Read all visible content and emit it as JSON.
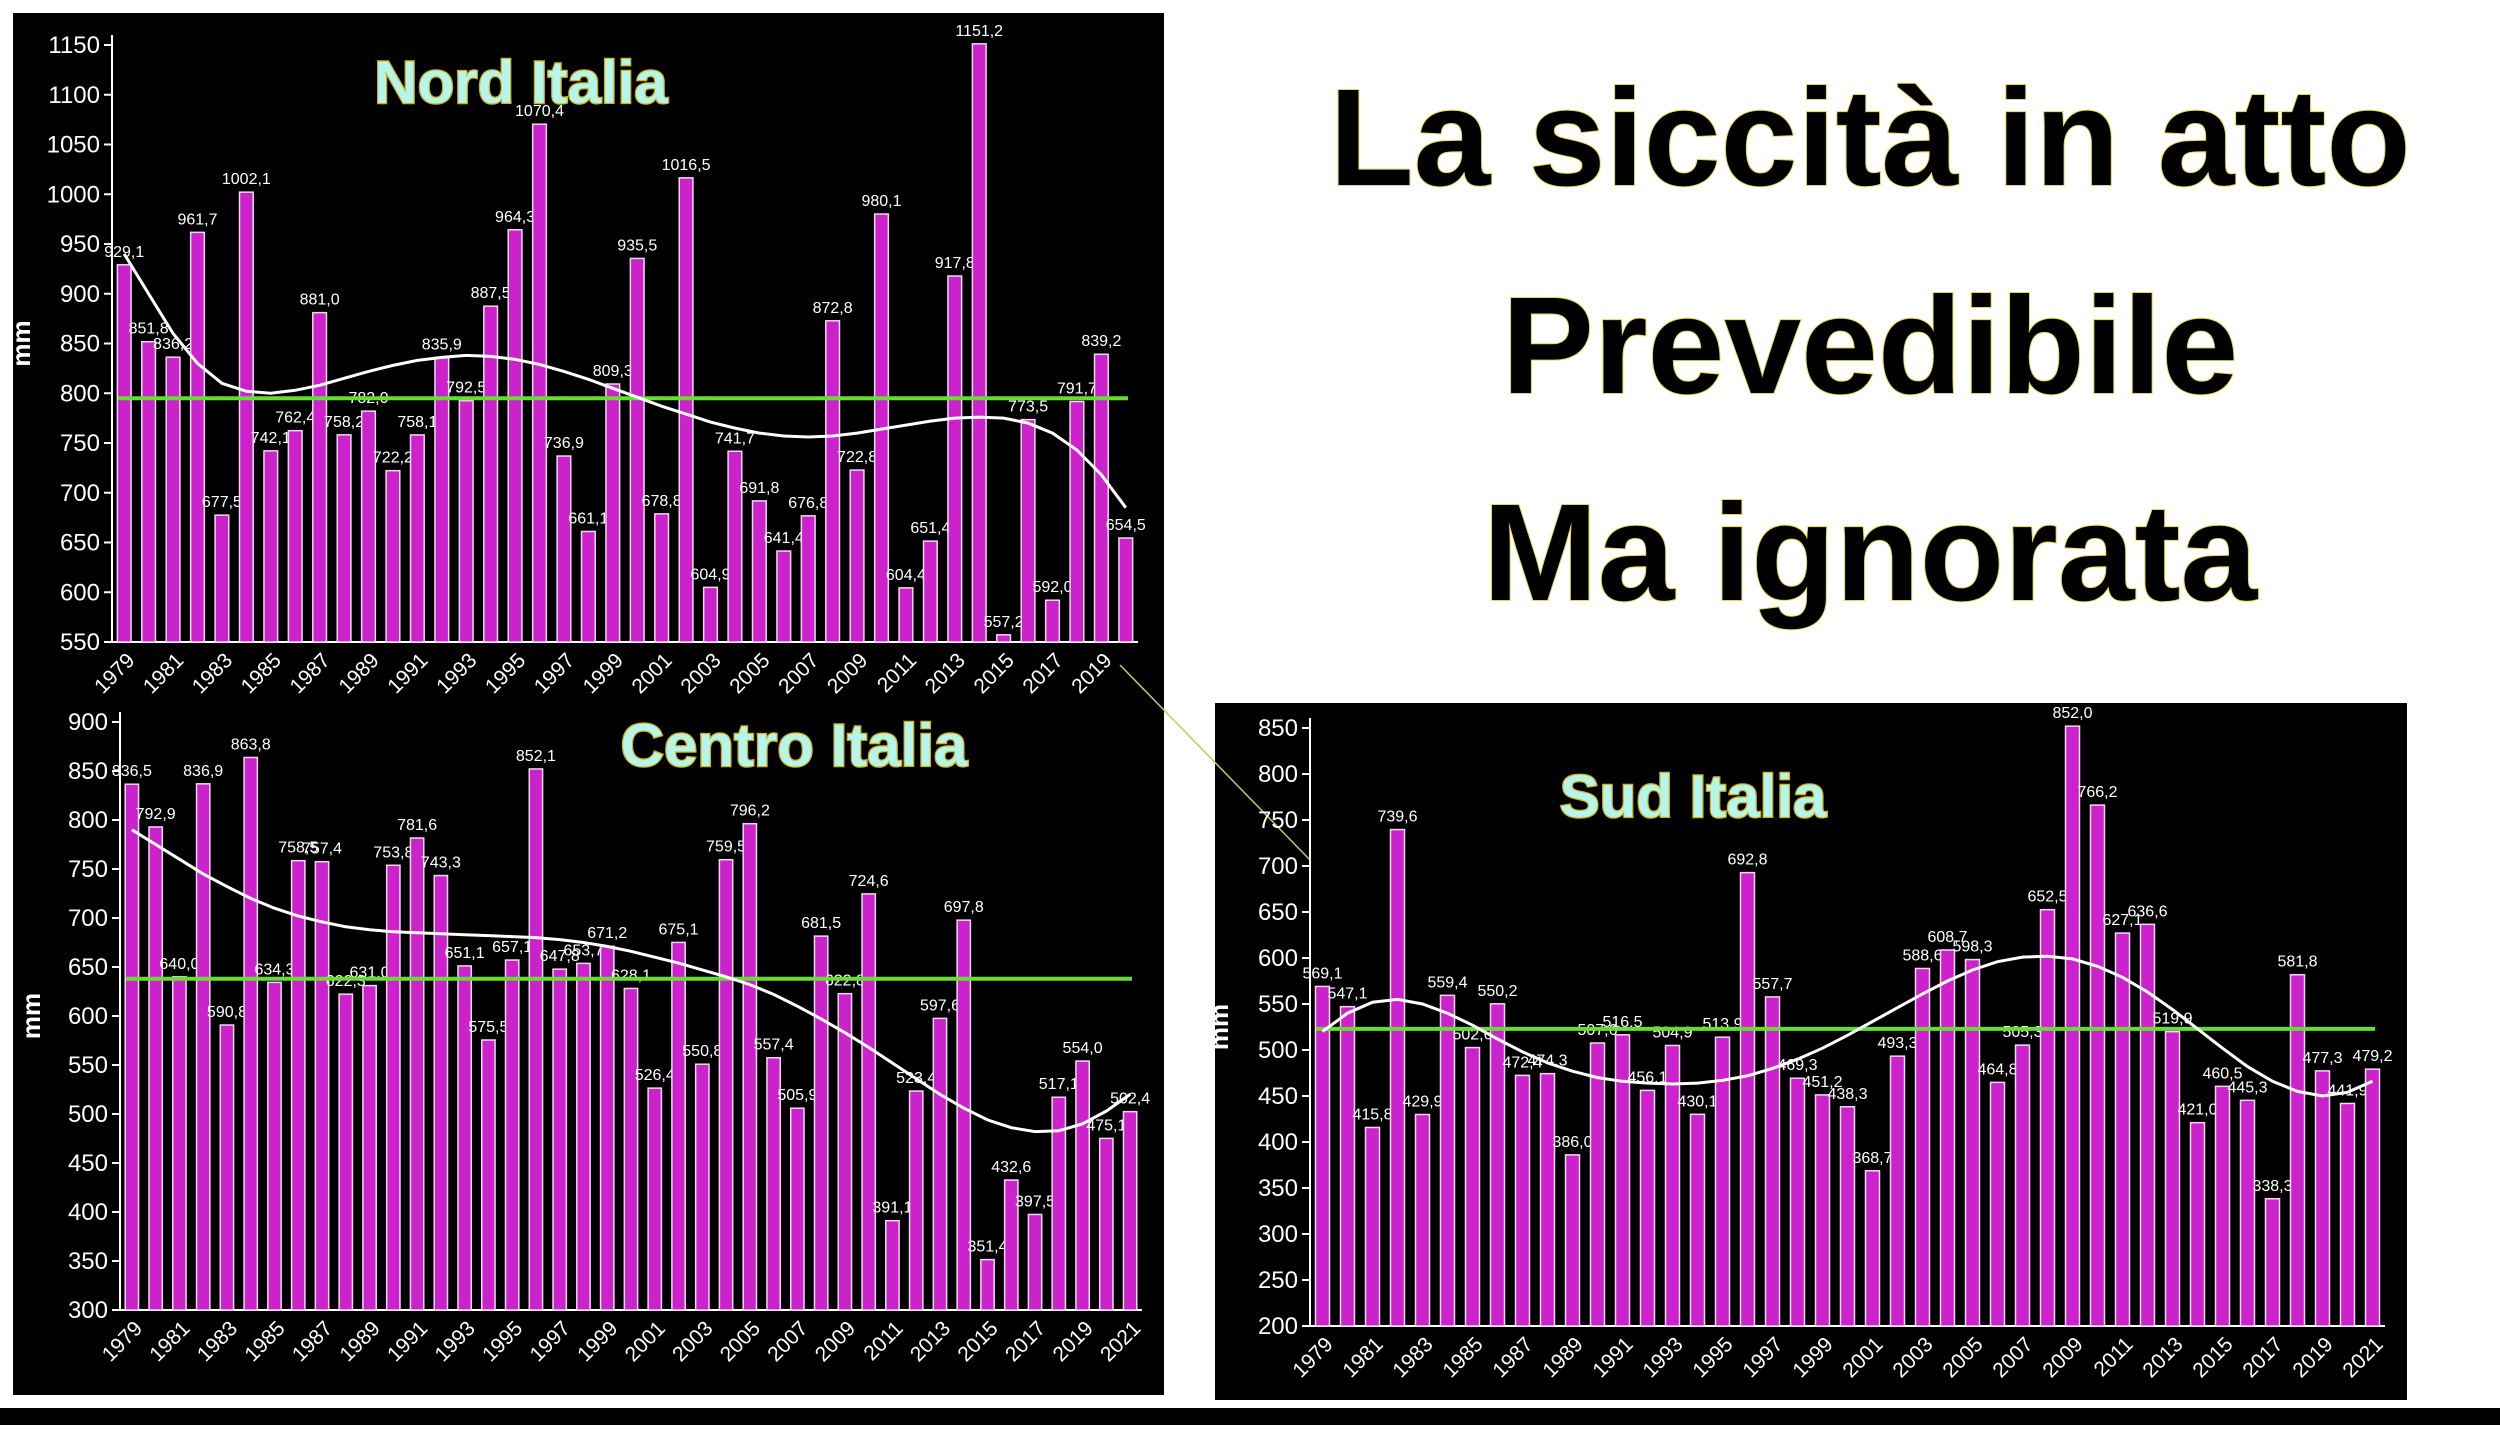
{
  "heading": [
    "La siccità in atto",
    "Prevedibile",
    "Ma ignorata"
  ],
  "chart_data": [
    {
      "type": "bar",
      "title": "Nord Italia",
      "y_label": "mm",
      "color": "#cc22cc",
      "mean_color": "#66dd33",
      "trend_color": "#ffffff",
      "ylim": [
        550,
        1150
      ],
      "yticks": [
        550,
        600,
        650,
        700,
        750,
        800,
        850,
        900,
        950,
        1000,
        1050,
        1100,
        1150
      ],
      "categories": [
        "1979",
        null,
        "1981",
        null,
        "1983",
        null,
        "1985",
        null,
        "1987",
        null,
        "1989",
        null,
        "1991",
        null,
        "1993",
        null,
        "1995",
        null,
        "1997",
        null,
        "1999",
        null,
        "2001",
        null,
        "2003",
        null,
        "2005",
        null,
        "2007",
        null,
        "2009",
        null,
        "2011",
        null,
        "2013",
        null,
        "2015",
        null,
        "2017",
        null,
        "2019",
        null
      ],
      "values": [
        929.1,
        851.8,
        836.2,
        961.7,
        677.5,
        1002.1,
        742.1,
        762.4,
        881.0,
        758.2,
        782.0,
        722.2,
        758.1,
        835.9,
        792.5,
        887.5,
        964.3,
        1070.4,
        736.9,
        661.1,
        809.3,
        935.5,
        678.8,
        1016.5,
        604.9,
        741.7,
        691.8,
        641.4,
        676.8,
        872.8,
        722.8,
        980.1,
        604.4,
        651.4,
        917.8,
        1151.2,
        557.2,
        773.5,
        592.0,
        791.7,
        839.2,
        654.5
      ],
      "value_labels": [
        "929,1",
        "851,8",
        "836,2",
        "961,7",
        "677,5",
        "1002,1",
        "742,1",
        "762,4",
        "881,0",
        "758,2",
        "782,0",
        "722,2",
        "758,1",
        "835,9",
        "792,5",
        "887,5",
        "964,3",
        "1070,4",
        "736,9",
        "661,1",
        "809,3",
        "935,5",
        "678,8",
        "1016,5",
        "604,9",
        "741,7",
        "691,8",
        "641,4",
        "676,8",
        "872,8",
        "722,8",
        "980,1",
        "604,4",
        "651,4",
        "917,8",
        "1151,2",
        "557,2",
        "773,5",
        "592,0",
        "791,7",
        "839,2",
        "654,5"
      ],
      "mean": 795,
      "trend": [
        940,
        900,
        860,
        830,
        810,
        802,
        800,
        803,
        808,
        815,
        822,
        828,
        833,
        836,
        838,
        837,
        834,
        829,
        822,
        814,
        805,
        796,
        787,
        779,
        771,
        765,
        760,
        757,
        756,
        757,
        760,
        764,
        768,
        772,
        775,
        776,
        775,
        770,
        760,
        743,
        718,
        685
      ]
    },
    {
      "type": "bar",
      "title": "Centro Italia",
      "y_label": "mm",
      "color": "#cc22cc",
      "mean_color": "#66dd33",
      "trend_color": "#ffffff",
      "ylim": [
        300,
        900
      ],
      "yticks": [
        300,
        350,
        400,
        450,
        500,
        550,
        600,
        650,
        700,
        750,
        800,
        850,
        900
      ],
      "categories": [
        "1979",
        null,
        "1981",
        null,
        "1983",
        null,
        "1985",
        null,
        "1987",
        null,
        "1989",
        null,
        "1991",
        null,
        "1993",
        null,
        "1995",
        null,
        "1997",
        null,
        "1999",
        null,
        "2001",
        null,
        "2003",
        null,
        "2005",
        null,
        "2007",
        null,
        "2009",
        null,
        "2011",
        null,
        "2013",
        null,
        "2015",
        null,
        "2017",
        null,
        "2019",
        null,
        "2021"
      ],
      "values": [
        836.5,
        792.9,
        640.0,
        836.9,
        590.8,
        863.8,
        634.3,
        758.5,
        757.4,
        622.3,
        631.0,
        753.8,
        781.6,
        743.3,
        651.1,
        575.5,
        657.1,
        852.1,
        647.8,
        653.7,
        671.2,
        628.1,
        526.4,
        675.1,
        550.8,
        759.5,
        796.2,
        557.4,
        505.9,
        681.5,
        622.8,
        724.6,
        391.1,
        523.4,
        597.6,
        697.8,
        351.4,
        432.6,
        397.5,
        517.1,
        554.0,
        475.1,
        502.4
      ],
      "value_labels": [
        "836,5",
        "792,9",
        "640,0",
        "836,9",
        "590,8",
        "863,8",
        "634,3",
        "758,5",
        "757,4",
        "622,3",
        "631,0",
        "753,8",
        "781,6",
        "743,3",
        "651,1",
        "575,5",
        "657,1",
        "852,1",
        "647,8",
        "653,7",
        "671,2",
        "628,1",
        "526,4",
        "675,1",
        "550,8",
        "759,5",
        "796,2",
        "557,4",
        "505,9",
        "681,5",
        "622,8",
        "724,6",
        "391,1",
        "523,4",
        "597,6",
        "697,8",
        "351,4",
        "432,6",
        "397,5",
        "517,1",
        "554,0",
        "475,1",
        "502,4"
      ],
      "mean": 638,
      "trend": [
        790,
        775,
        760,
        745,
        732,
        720,
        710,
        702,
        696,
        691,
        688,
        686,
        685,
        684,
        683,
        682,
        681,
        680,
        678,
        675,
        671,
        666,
        660,
        654,
        647,
        640,
        632,
        622,
        610,
        597,
        583,
        568,
        552,
        536,
        520,
        506,
        494,
        486,
        482,
        483,
        490,
        503,
        520
      ]
    },
    {
      "type": "bar",
      "title": "Sud Italia",
      "y_label": "mm",
      "color": "#cc22cc",
      "mean_color": "#66dd33",
      "trend_color": "#ffffff",
      "ylim": [
        200,
        850
      ],
      "yticks": [
        200,
        250,
        300,
        350,
        400,
        450,
        500,
        550,
        600,
        650,
        700,
        750,
        800,
        850
      ],
      "categories": [
        "1979",
        null,
        "1981",
        null,
        "1983",
        null,
        "1985",
        null,
        "1987",
        null,
        "1989",
        null,
        "1991",
        null,
        "1993",
        null,
        "1995",
        null,
        "1997",
        null,
        "1999",
        null,
        "2001",
        null,
        "2003",
        null,
        "2005",
        null,
        "2007",
        null,
        "2009",
        null,
        "2011",
        null,
        "2013",
        null,
        "2015",
        null,
        "2017",
        null,
        "2019",
        null,
        "2021"
      ],
      "values": [
        569.1,
        547.1,
        415.8,
        739.6,
        429.9,
        559.4,
        502.6,
        550.2,
        472.4,
        474.3,
        386.0,
        507.6,
        516.5,
        456.1,
        504.9,
        430.1,
        513.9,
        692.8,
        557.7,
        469.3,
        451.2,
        438.3,
        368.7,
        493.3,
        588.6,
        608.7,
        598.3,
        464.8,
        505.3,
        652.5,
        852.0,
        766.2,
        627.1,
        636.6,
        519.9,
        421.0,
        460.5,
        445.3,
        338.3,
        581.8,
        477.3,
        441.9,
        479.2
      ],
      "value_labels": [
        "569,1",
        "547,1",
        "415,8",
        "739,6",
        "429,9",
        "559,4",
        "502,6",
        "550,2",
        "472,4",
        "474,3",
        "386,0",
        "507,6",
        "516,5",
        "456,1",
        "504,9",
        "430,1",
        "513,9",
        "692,8",
        "557,7",
        "469,3",
        "451,2",
        "438,3",
        "368,7",
        "493,3",
        "588,6",
        "608,7",
        "598,3",
        "464,8",
        "505,3",
        "652,5",
        "852,0",
        "766,2",
        "627,1",
        "636,6",
        "519,9",
        "421,0",
        "460,5",
        "445,3",
        "338,3",
        "581,8",
        "477,3",
        "441,9",
        "479,2"
      ],
      "mean": 523,
      "trend": [
        520,
        540,
        552,
        555,
        550,
        540,
        527,
        512,
        498,
        486,
        477,
        470,
        466,
        464,
        463,
        464,
        467,
        472,
        480,
        490,
        502,
        516,
        531,
        546,
        561,
        575,
        587,
        596,
        601,
        602,
        599,
        591,
        579,
        563,
        544,
        523,
        502,
        482,
        466,
        455,
        450,
        454,
        466
      ]
    }
  ]
}
